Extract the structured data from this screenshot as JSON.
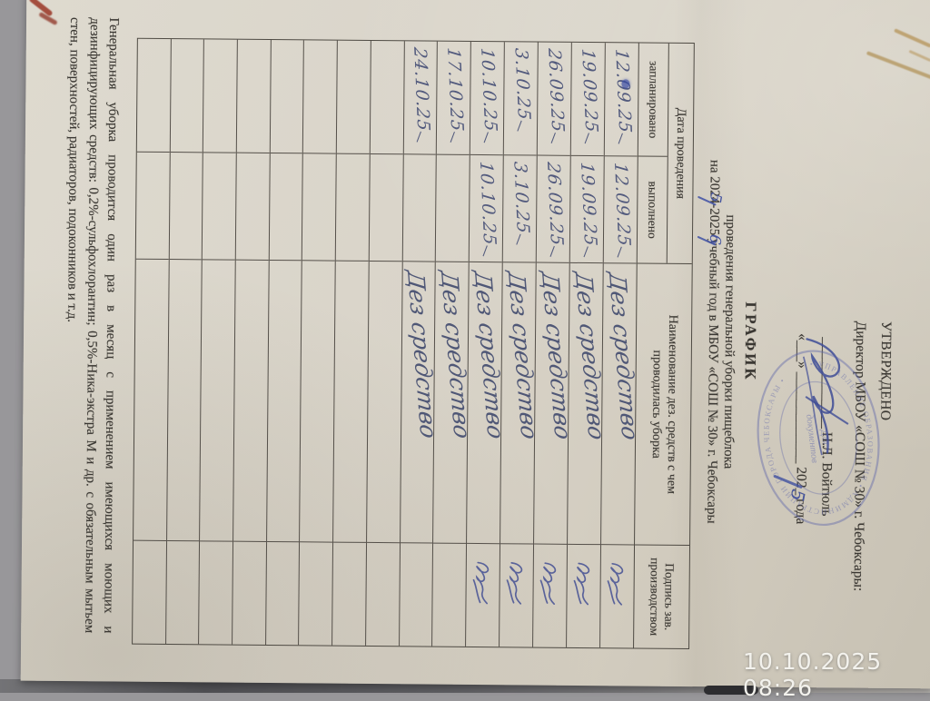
{
  "camera": {
    "timestamp": "10.10.2025  08:26"
  },
  "approval": {
    "approved": "УТВЕРЖДЕНО",
    "director": "Директор МБОУ «СОШ № 30» г. Чебоксары:",
    "name_line": "_____________ Н.Л. Войтюль",
    "date_line": "«___» _____________ 202_ года",
    "handwritten_year": "5"
  },
  "title": {
    "heading": "ГРАФИК",
    "line2": "проведения генеральной уборки пищеблока",
    "line3": "на 2024-2025 учебный год в МБОУ «СОШ № 30» г. Чебоксары",
    "handwritten_year_fix1": "5",
    "handwritten_year_fix2": "6"
  },
  "stamp": {
    "ring": "• УПРАВЛЕНИЕ ОБРАЗОВАНИЯ • АДМИНИСТРАЦИИ ГОРОДА ЧЕБОКСАРЫ •",
    "center_line1": "Для",
    "center_line2": "документов"
  },
  "table": {
    "header": {
      "date_group": "Дата проведения",
      "planned": "запланировано",
      "done": "выполнено",
      "agent": "Наименование дез. средств с чем проводилась уборка",
      "signature": "Подпись зав. производством"
    },
    "rows": [
      {
        "planned": "12.09.25",
        "done": "12.09.25",
        "agent": "Дез средство",
        "signed": true,
        "ink_blot": true
      },
      {
        "planned": "19.09.25",
        "done": "19.09.25",
        "agent": "Дез средство",
        "signed": true
      },
      {
        "planned": "26.09.25",
        "done": "26.09.25",
        "agent": "Дез средство",
        "signed": true
      },
      {
        "planned": "3.10.25",
        "done": "3.10.25",
        "agent": "Дез средство",
        "signed": true
      },
      {
        "planned": "10.10.25",
        "done": "10.10.25",
        "agent": "Дез средство",
        "signed": true
      },
      {
        "planned": "17.10.25",
        "done": "",
        "agent": "Дез средство",
        "signed": false
      },
      {
        "planned": "24.10.25",
        "done": "",
        "agent": "Дез средство",
        "signed": false
      },
      {
        "planned": "",
        "done": "",
        "agent": "",
        "signed": false
      },
      {
        "planned": "",
        "done": "",
        "agent": "",
        "signed": false
      },
      {
        "planned": "",
        "done": "",
        "agent": "",
        "signed": false
      },
      {
        "planned": "",
        "done": "",
        "agent": "",
        "signed": false
      },
      {
        "planned": "",
        "done": "",
        "agent": "",
        "signed": false
      },
      {
        "planned": "",
        "done": "",
        "agent": "",
        "signed": false
      },
      {
        "planned": "",
        "done": "",
        "agent": "",
        "signed": false
      },
      {
        "planned": "",
        "done": "",
        "agent": "",
        "signed": false
      }
    ]
  },
  "note": "Генеральная уборка проводится один раз в месяц с применением имеющихся моющих и дезинфицирующих средств: 0,2%-сульфохлорантин; 0,5%-Ника-экстра М и др. с обязательным мытьем стен, поверхностей, радиаторов, подоконников и т.д.",
  "colors": {
    "paper": "#d8d3c8",
    "ink_blue": "#4f5880",
    "stamp_blue": "#5c64aa",
    "grid": "#55504a",
    "timestamp_white": "#f3f2ed",
    "background_gray": "#98979a"
  }
}
